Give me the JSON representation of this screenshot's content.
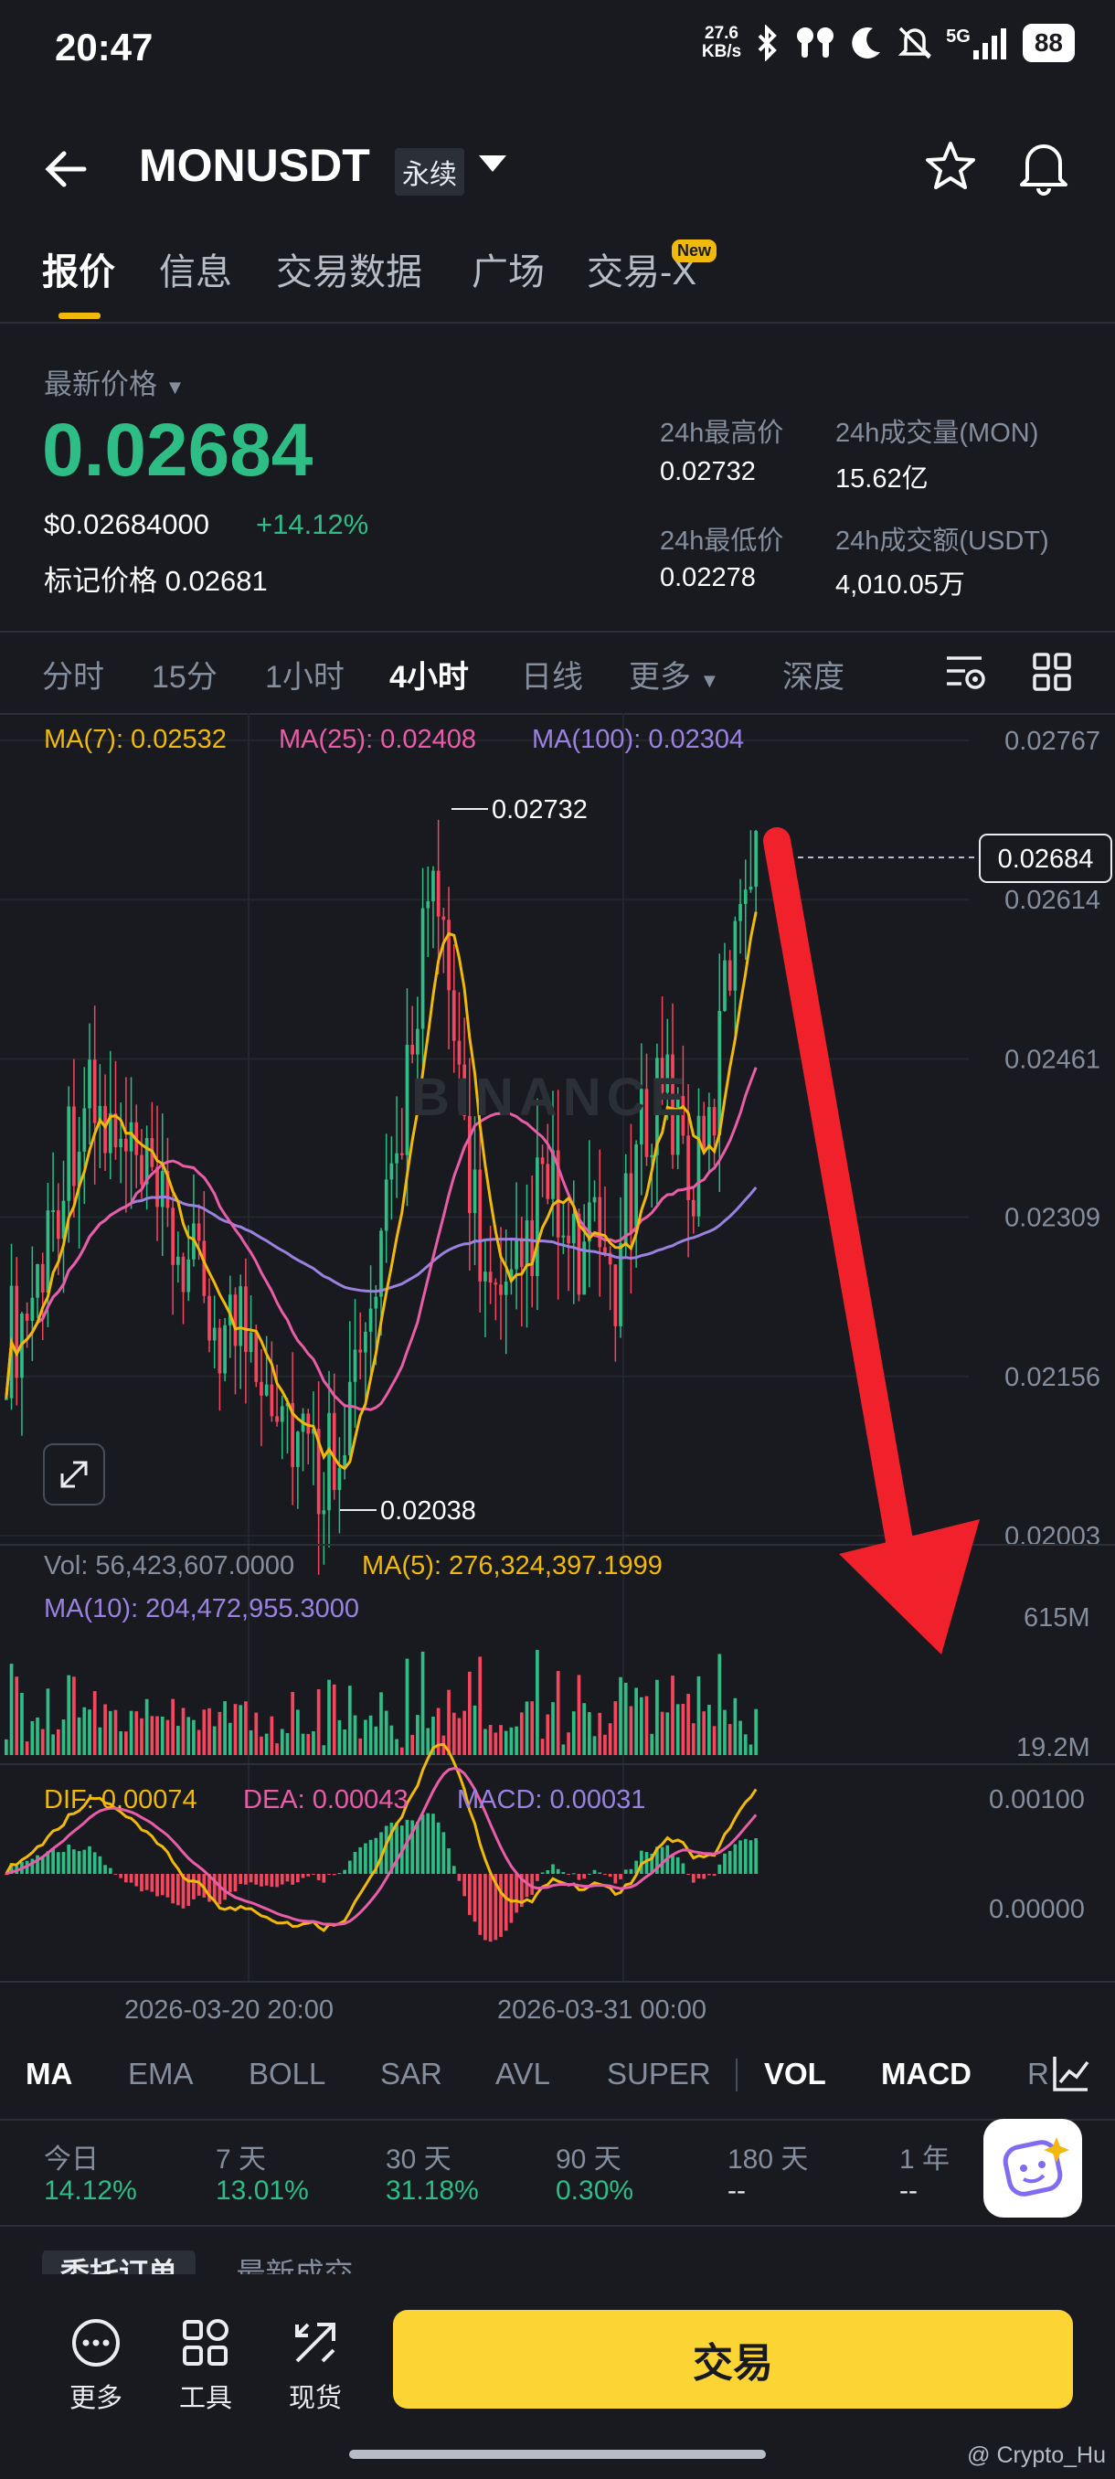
{
  "status_bar": {
    "time": "20:47",
    "net_speed_top": "27.6",
    "net_speed_bottom": "KB/s",
    "network": "5G",
    "battery": "88"
  },
  "header": {
    "pair": "MONUSDT",
    "badge": "永续"
  },
  "tabs": [
    {
      "label": "报价"
    },
    {
      "label": "信息"
    },
    {
      "label": "交易数据"
    },
    {
      "label": "广场"
    },
    {
      "label": "交易-X"
    }
  ],
  "new_badge": "New",
  "price": {
    "latest_label": "最新价格",
    "last": "0.02684",
    "usd": "$0.02684000",
    "change": "+14.12%",
    "mark_label": "标记价格",
    "mark_value": "0.02681"
  },
  "stats": {
    "high_label": "24h最高价",
    "high": "0.02732",
    "low_label": "24h最低价",
    "low": "0.02278",
    "vol_label": "24h成交量(MON)",
    "vol": "15.62亿",
    "amt_label": "24h成交额(USDT)",
    "amt": "4,010.05万"
  },
  "timeframes": [
    "分时",
    "15分",
    "1小时",
    "4小时",
    "日线",
    "更多",
    "深度"
  ],
  "chart_data": {
    "type": "candlestick",
    "y_ticks": [
      "0.02767",
      "0.02614",
      "0.02461",
      "0.02309",
      "0.02156",
      "0.02003"
    ],
    "ylim": [
      0.02003,
      0.02767
    ],
    "current_price_tag": "0.02684",
    "high_marker": "0.02732",
    "low_marker": "0.02038",
    "x_labels": [
      "2026-03-20 20:00",
      "2026-03-31 00:00"
    ],
    "watermark": "BINANCE",
    "ma_legend": {
      "ma7": "MA(7): 0.02532",
      "ma25": "MA(25): 0.02408",
      "ma100": "MA(100): 0.02304"
    },
    "ma7_color": "#f0b90b",
    "ma25_color": "#e95da8",
    "ma100_color": "#9b82e0",
    "close": [
      0.0219,
      0.0221,
      0.0225,
      0.0232,
      0.0238,
      0.0242,
      0.024,
      0.0237,
      0.0236,
      0.0233,
      0.023,
      0.0228,
      0.0225,
      0.0222,
      0.022,
      0.0221,
      0.0219,
      0.0216,
      0.0212,
      0.0209,
      0.0206,
      0.021,
      0.0214,
      0.0218,
      0.0226,
      0.0236,
      0.025,
      0.0262,
      0.0255,
      0.0244,
      0.0232,
      0.0222,
      0.022,
      0.0226,
      0.0232,
      0.0233,
      0.0226,
      0.0227,
      0.0228,
      0.0225,
      0.0232,
      0.0241,
      0.0245,
      0.024,
      0.0234,
      0.0238,
      0.0252,
      0.0264,
      0.0268
    ],
    "volume": {
      "legend_vol": "Vol: 56,423,607.0000",
      "legend_ma5": "MA(5): 276,324,397.1999",
      "legend_ma10": "MA(10): 204,472,955.3000",
      "y_ticks": [
        "615M",
        "19.2M"
      ]
    },
    "macd": {
      "legend_dif": "DIF: 0.00074",
      "legend_dea": "DEA: 0.00043",
      "legend_macd": "MACD: 0.00031",
      "y_ticks": [
        "0.00100",
        "0.00000"
      ]
    }
  },
  "indicators": [
    "MA",
    "EMA",
    "BOLL",
    "SAR",
    "AVL",
    "SUPER",
    "VOL",
    "MACD",
    "R"
  ],
  "performance": [
    {
      "label": "今日",
      "value": "14.12%"
    },
    {
      "label": "7 天",
      "value": "13.01%"
    },
    {
      "label": "30 天",
      "value": "31.18%"
    },
    {
      "label": "90 天",
      "value": "0.30%"
    },
    {
      "label": "180 天",
      "value": "--"
    },
    {
      "label": "1 年",
      "value": "--"
    }
  ],
  "partial_tabs": {
    "a": "委托订单",
    "b": "最新成交"
  },
  "bottom_nav": {
    "more": "更多",
    "tools": "工具",
    "spot": "现货",
    "trade": "交易"
  },
  "watermark_credit": "@ Crypto_Hu"
}
